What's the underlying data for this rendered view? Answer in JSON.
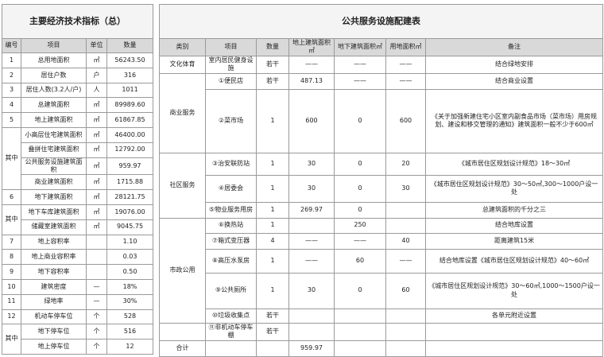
{
  "left_table": {
    "title": "主要经济技术指标（总）",
    "headers": [
      "编号",
      "项目",
      "单位",
      "数量"
    ],
    "rows": [
      {
        "no": "1",
        "item": "总用地面积",
        "unit": "㎡",
        "value": "56243.50"
      },
      {
        "no": "2",
        "item": "居住户数",
        "unit": "户",
        "value": "316"
      },
      {
        "no": "3",
        "item": "居住人数(3.2人/户)",
        "unit": "人",
        "value": "1011"
      },
      {
        "no": "4",
        "item": "总建筑面积",
        "unit": "㎡",
        "value": "89989.60"
      },
      {
        "no": "5",
        "item": "地上建筑面积",
        "unit": "㎡",
        "value": "61867.85"
      },
      {
        "group": "其中",
        "item": "小高层住宅建筑面积",
        "unit": "㎡",
        "value": "46400.00"
      },
      {
        "item": "叠拼住宅建筑面积",
        "unit": "㎡",
        "value": "12792.00"
      },
      {
        "item": "公共服务设施建筑面积",
        "unit": "㎡",
        "value": "959.97"
      },
      {
        "item": "商业建筑面积",
        "unit": "㎡",
        "value": "1715.88"
      },
      {
        "no": "6",
        "item": "地下建筑面积",
        "unit": "㎡",
        "value": "28121.75"
      },
      {
        "group": "其中",
        "item": "地下车库建筑面积",
        "unit": "㎡",
        "value": "19076.00"
      },
      {
        "item": "储藏室建筑面积",
        "unit": "㎡",
        "value": "9045.75"
      },
      {
        "no": "7",
        "item": "地上容积率",
        "value": "1.10"
      },
      {
        "no": "8",
        "item": "地上商业容积率",
        "value": "0.03"
      },
      {
        "no": "9",
        "item": "地下容积率",
        "value": "0.50"
      },
      {
        "no": "10",
        "item": "建筑密度",
        "unit": "—",
        "value": "18%"
      },
      {
        "no": "11",
        "item": "绿地率",
        "unit": "—",
        "value": "30%"
      },
      {
        "no": "12",
        "item": "机动车停车位",
        "unit": "个",
        "value": "528"
      },
      {
        "group": "其中",
        "item": "地下停车位",
        "unit": "个",
        "value": "516"
      },
      {
        "item": "地上停车位",
        "unit": "个",
        "value": "12"
      }
    ]
  },
  "right_table": {
    "title": "公共服务设施配建表",
    "headers": [
      "类别",
      "项目",
      "数量",
      "地上建筑面积㎡",
      "地下建筑面积㎡",
      "用地面积㎡",
      "备注"
    ],
    "rows": [
      {
        "category": "文化体育",
        "item": "室内居民健身设施",
        "count": "若干",
        "above": "——",
        "below": "——",
        "land": "——",
        "note": "结合绿地安排"
      },
      {
        "category": "商业服务",
        "item": "①便民店",
        "count": "若干",
        "above": "487.13",
        "below": "——",
        "land": "——",
        "note": "结合商业设置"
      },
      {
        "item": "②菜市场",
        "count": "1",
        "above": "600",
        "below": "0",
        "land": "600",
        "note": "《关于加强新建住宅小区室内副食品市场（菜市场）用房规划、建设和移交管理的通知》建筑面积一般不少于600㎡"
      },
      {
        "category": "社区服务",
        "item": "③治安联防站",
        "count": "1",
        "above": "30",
        "below": "0",
        "land": "20",
        "note": "《城市居住区规划设计规范》18～30㎡"
      },
      {
        "item": "④居委会",
        "count": "1",
        "above": "30",
        "below": "0",
        "land": "30",
        "note": "《城市居住区规划设计规范》30～50㎡,300～1000户设一处"
      },
      {
        "item": "⑤物业服务用房",
        "count": "1",
        "above": "269.97",
        "below": "0",
        "note": "总建筑面积的千分之三"
      },
      {
        "category": "市政公用",
        "item": "⑥换热站",
        "count": "1",
        "below": "250",
        "note": "结合地库设置"
      },
      {
        "item": "⑦箱式变压器",
        "count": "4",
        "above": "——",
        "below": "——",
        "land": "40",
        "note": "距离建筑15米"
      },
      {
        "item": "⑧高压水泵房",
        "count": "1",
        "above": "——",
        "below": "60",
        "land": "——",
        "note": "结合地库设置《城市居住区规划设计规范》40～60㎡"
      },
      {
        "item": "⑨公共厕所",
        "count": "1",
        "above": "30",
        "below": "0",
        "land": "60",
        "note": "《城市居住区规划设计规范》30～60㎡,1000～1500户设一处"
      },
      {
        "item": "⑩垃圾收集点",
        "count": "若干",
        "note": "各单元附近设置"
      },
      {
        "item": "⑪非机动车停车棚",
        "count": "若干"
      },
      {
        "category": "合计",
        "above": "959.97"
      }
    ]
  }
}
